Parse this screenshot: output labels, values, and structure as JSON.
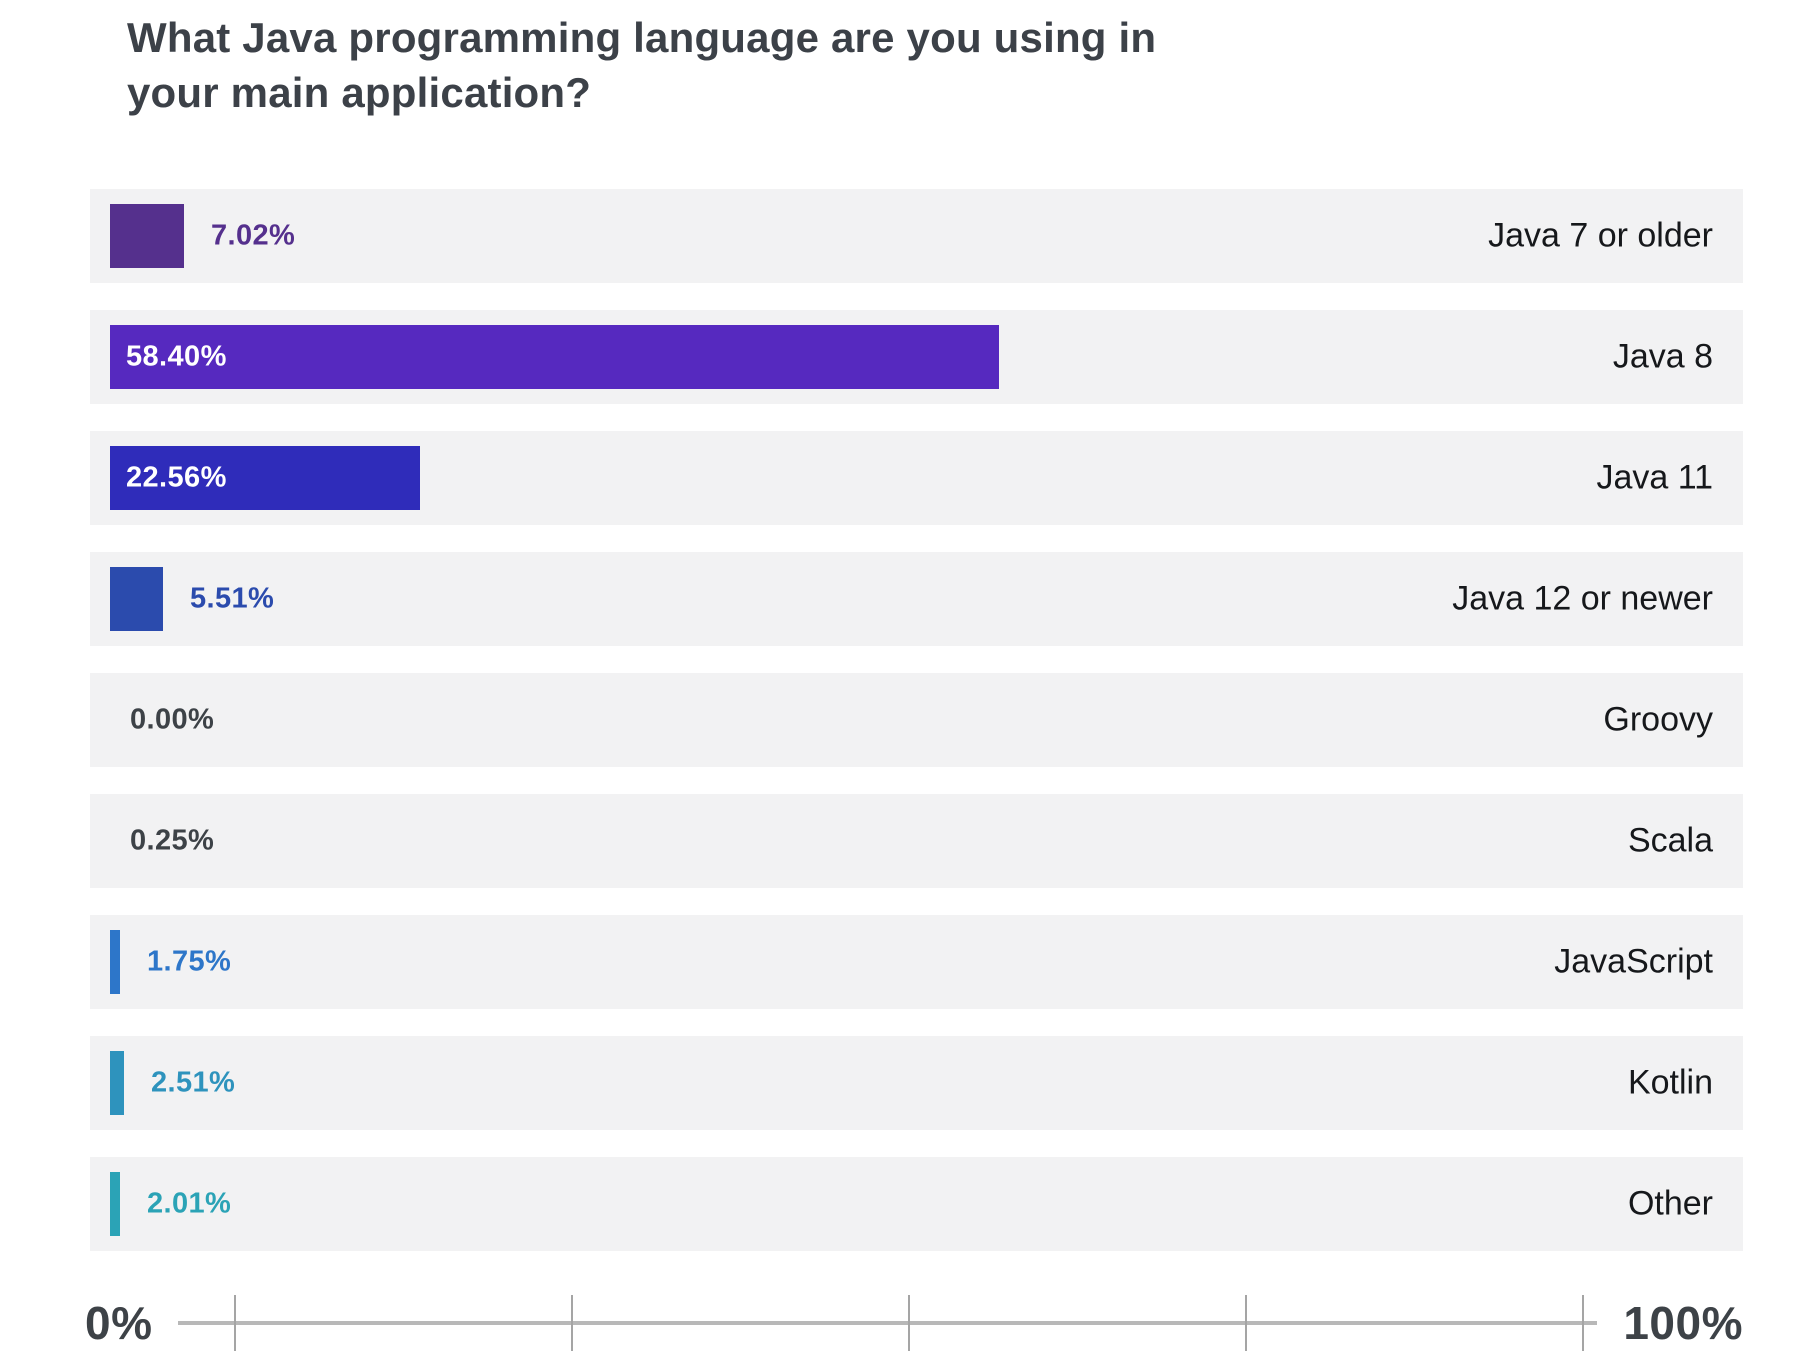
{
  "title": "What Java programming language are you using in your main application?",
  "chart_data": {
    "type": "bar",
    "orientation": "horizontal",
    "title": "What Java programming language are you using in your main application?",
    "unit": "percent",
    "categories": [
      "Java 7 or older",
      "Java 8",
      "Java 11",
      "Java 12 or newer",
      "Groovy",
      "Scala",
      "JavaScript",
      "Kotlin",
      "Other"
    ],
    "values": [
      7.02,
      58.4,
      22.56,
      5.51,
      0.0,
      0.25,
      1.75,
      2.51,
      2.01
    ],
    "value_labels": [
      "7.02%",
      "58.40%",
      "22.56%",
      "5.51%",
      "0.00%",
      "0.25%",
      "1.75%",
      "2.51%",
      "2.01%"
    ],
    "bar_colors": [
      "#55308d",
      "#5629bf",
      "#2f2cba",
      "#2b4bad",
      "#3d4247",
      "#3d4247",
      "#2d76c9",
      "#2e93bd",
      "#2ba3b6"
    ],
    "value_label_colors": [
      "#55308d",
      "#ffffff",
      "#ffffff",
      "#2b4bad",
      "#3d4247",
      "#3d4247",
      "#2d76c9",
      "#2e93bd",
      "#2ba3b6"
    ],
    "label_inside": [
      false,
      true,
      true,
      false,
      false,
      false,
      false,
      false,
      false
    ],
    "xlim": [
      0,
      100
    ],
    "axis_min_label": "0%",
    "axis_max_label": "100%",
    "axis_ticks_percent": [
      0,
      25,
      50,
      75,
      100
    ],
    "grid": false,
    "legend": "none",
    "track_color": "#f2f2f3"
  },
  "colors": {
    "background": "#ffffff",
    "title_text": "#3c4148",
    "category_text": "#16181b",
    "axis_text": "#3d4247",
    "axis_line": "#b8b8b8",
    "axis_tick": "#a5a5a5",
    "row_track": "#f2f2f3"
  }
}
